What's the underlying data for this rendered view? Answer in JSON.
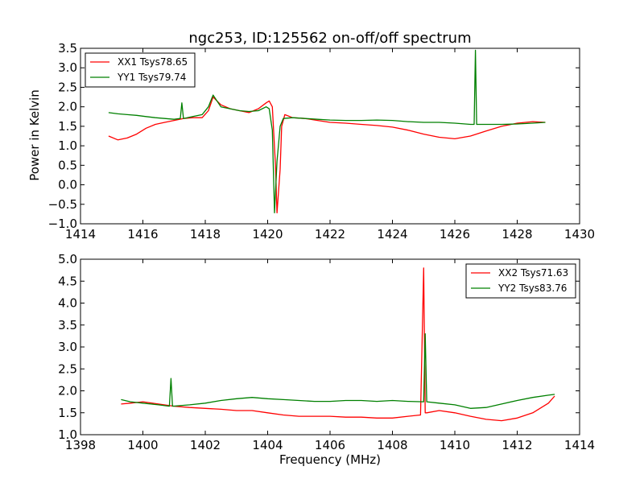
{
  "figure": {
    "title": "ngc253, ID:125562 on-off/off spectrum",
    "xlabel": "Frequency (MHz)",
    "ylabel": "Power in Kelvin"
  },
  "chart_data": [
    {
      "type": "line",
      "title": "ngc253, ID:125562 on-off/off spectrum",
      "xlabel": "",
      "ylabel": "Power in Kelvin",
      "xlim": [
        1414,
        1430
      ],
      "ylim": [
        -1.0,
        3.5
      ],
      "x_ticks": [
        "1414",
        "1416",
        "1418",
        "1420",
        "1422",
        "1424",
        "1426",
        "1428",
        "1430"
      ],
      "y_ticks": [
        "−1.0",
        "−0.5",
        "0.0",
        "0.5",
        "1.0",
        "1.5",
        "2.0",
        "2.5",
        "3.0",
        "3.5"
      ],
      "legend_position": "top-left",
      "grid": false,
      "series": [
        {
          "name": "XX1 Tsys78.65",
          "color": "#ff0000",
          "x": [
            1414.9,
            1415.2,
            1415.5,
            1415.8,
            1416.1,
            1416.4,
            1416.7,
            1417.0,
            1417.3,
            1417.6,
            1417.9,
            1418.1,
            1418.25,
            1418.5,
            1418.8,
            1419.1,
            1419.4,
            1419.7,
            1419.95,
            1420.05,
            1420.15,
            1420.25,
            1420.3,
            1420.4,
            1420.45,
            1420.55,
            1420.8,
            1421.2,
            1421.6,
            1422.0,
            1422.5,
            1423.0,
            1423.5,
            1424.0,
            1424.5,
            1425.0,
            1425.5,
            1426.0,
            1426.5,
            1427.0,
            1427.5,
            1428.0,
            1428.5,
            1428.9
          ],
          "y": [
            1.25,
            1.15,
            1.2,
            1.3,
            1.45,
            1.55,
            1.6,
            1.65,
            1.7,
            1.72,
            1.72,
            1.9,
            2.25,
            2.05,
            1.95,
            1.9,
            1.85,
            1.95,
            2.1,
            2.15,
            2.0,
            0.5,
            -0.72,
            0.4,
            1.5,
            1.8,
            1.72,
            1.7,
            1.65,
            1.6,
            1.58,
            1.55,
            1.52,
            1.48,
            1.4,
            1.3,
            1.22,
            1.18,
            1.25,
            1.38,
            1.5,
            1.58,
            1.62,
            1.6
          ]
        },
        {
          "name": "YY1 Tsys79.74",
          "color": "#008000",
          "x": [
            1414.9,
            1415.2,
            1415.5,
            1415.8,
            1416.1,
            1416.4,
            1416.7,
            1417.0,
            1417.2,
            1417.25,
            1417.3,
            1417.6,
            1417.9,
            1418.1,
            1418.25,
            1418.5,
            1418.8,
            1419.1,
            1419.4,
            1419.7,
            1419.95,
            1420.05,
            1420.15,
            1420.22,
            1420.3,
            1420.4,
            1420.5,
            1420.8,
            1421.2,
            1421.6,
            1422.0,
            1422.5,
            1423.0,
            1423.5,
            1424.0,
            1424.5,
            1425.0,
            1425.5,
            1426.0,
            1426.5,
            1426.62,
            1426.66,
            1426.7,
            1427.0,
            1427.5,
            1428.0,
            1428.5,
            1428.9
          ],
          "y": [
            1.85,
            1.82,
            1.8,
            1.78,
            1.75,
            1.72,
            1.7,
            1.68,
            1.7,
            2.1,
            1.7,
            1.75,
            1.8,
            2.0,
            2.3,
            2.0,
            1.95,
            1.9,
            1.88,
            1.9,
            2.0,
            1.95,
            1.4,
            -0.72,
            0.6,
            1.5,
            1.7,
            1.72,
            1.7,
            1.68,
            1.66,
            1.65,
            1.65,
            1.66,
            1.65,
            1.62,
            1.6,
            1.6,
            1.58,
            1.55,
            1.55,
            3.45,
            1.55,
            1.55,
            1.55,
            1.56,
            1.58,
            1.6
          ]
        }
      ]
    },
    {
      "type": "line",
      "title": "",
      "xlabel": "Frequency (MHz)",
      "ylabel": "",
      "xlim": [
        1398,
        1414
      ],
      "ylim": [
        1.0,
        5.0
      ],
      "x_ticks": [
        "1398",
        "1400",
        "1402",
        "1404",
        "1406",
        "1408",
        "1410",
        "1412",
        "1414"
      ],
      "y_ticks": [
        "1.0",
        "1.5",
        "2.0",
        "2.5",
        "3.0",
        "3.5",
        "4.0",
        "4.5",
        "5.0"
      ],
      "legend_position": "top-right",
      "grid": false,
      "series": [
        {
          "name": "XX2 Tsys71.63",
          "color": "#ff0000",
          "x": [
            1399.3,
            1399.6,
            1400.0,
            1400.5,
            1401.0,
            1401.5,
            1402.0,
            1402.5,
            1403.0,
            1403.5,
            1404.0,
            1404.5,
            1405.0,
            1405.5,
            1406.0,
            1406.5,
            1407.0,
            1407.5,
            1408.0,
            1408.5,
            1408.9,
            1409.0,
            1409.05,
            1409.1,
            1409.5,
            1410.0,
            1410.5,
            1411.0,
            1411.5,
            1412.0,
            1412.5,
            1413.0,
            1413.2
          ],
          "y": [
            1.7,
            1.72,
            1.75,
            1.7,
            1.65,
            1.62,
            1.6,
            1.58,
            1.55,
            1.55,
            1.5,
            1.45,
            1.42,
            1.42,
            1.42,
            1.4,
            1.4,
            1.38,
            1.38,
            1.42,
            1.45,
            4.8,
            1.5,
            1.5,
            1.55,
            1.5,
            1.42,
            1.35,
            1.32,
            1.38,
            1.5,
            1.72,
            1.88
          ]
        },
        {
          "name": "YY2 Tsys83.76",
          "color": "#008000",
          "x": [
            1399.3,
            1399.6,
            1400.0,
            1400.5,
            1400.85,
            1400.9,
            1400.95,
            1401.5,
            1402.0,
            1402.5,
            1403.0,
            1403.5,
            1404.0,
            1404.5,
            1405.0,
            1405.5,
            1406.0,
            1406.5,
            1407.0,
            1407.5,
            1408.0,
            1408.5,
            1409.0,
            1409.05,
            1409.1,
            1409.5,
            1410.0,
            1410.5,
            1411.0,
            1411.5,
            1412.0,
            1412.5,
            1413.0,
            1413.2
          ],
          "y": [
            1.8,
            1.75,
            1.72,
            1.68,
            1.65,
            2.28,
            1.65,
            1.68,
            1.72,
            1.78,
            1.82,
            1.85,
            1.82,
            1.8,
            1.78,
            1.76,
            1.76,
            1.78,
            1.78,
            1.76,
            1.78,
            1.76,
            1.75,
            3.3,
            1.75,
            1.72,
            1.68,
            1.6,
            1.62,
            1.7,
            1.78,
            1.85,
            1.9,
            1.92
          ]
        }
      ]
    }
  ]
}
